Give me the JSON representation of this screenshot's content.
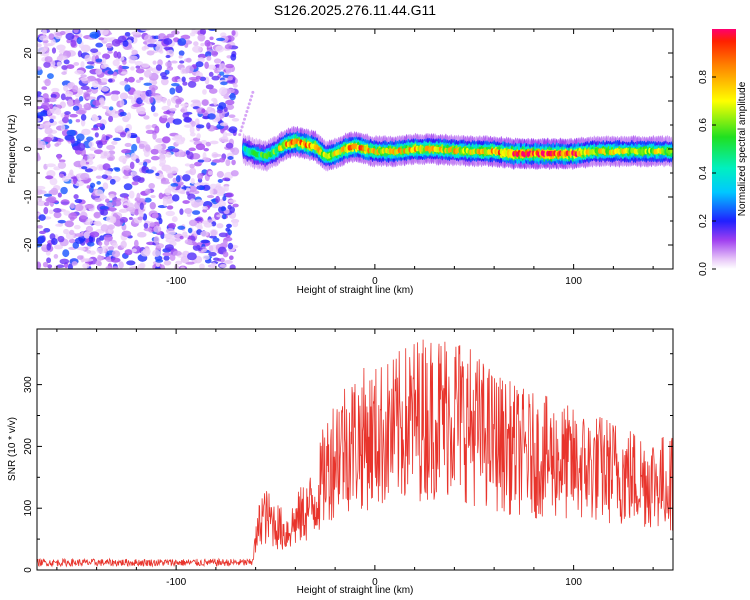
{
  "title": "S126.2025.276.11.44.G11",
  "chart_data": [
    {
      "type": "heatmap",
      "xlabel": "Height of straight line (km)",
      "ylabel": "Frequency (Hz)",
      "xlim": [
        -170,
        150
      ],
      "ylim": [
        -25,
        25
      ],
      "x_ticks": [
        -100,
        0,
        100
      ],
      "y_ticks": [
        -20,
        -10,
        0,
        10,
        20
      ],
      "noise_region_x": [
        -170,
        -70
      ],
      "ridge": [
        {
          "x": -66,
          "freq": 0.0,
          "amp": 0.45
        },
        {
          "x": -60,
          "freq": -1.0,
          "amp": 0.5
        },
        {
          "x": -55,
          "freq": -1.5,
          "amp": 0.55
        },
        {
          "x": -50,
          "freq": -0.5,
          "amp": 0.6
        },
        {
          "x": -45,
          "freq": 1.0,
          "amp": 0.8
        },
        {
          "x": -40,
          "freq": 1.5,
          "amp": 0.85
        },
        {
          "x": -35,
          "freq": 1.0,
          "amp": 0.85
        },
        {
          "x": -30,
          "freq": 0.5,
          "amp": 0.8
        },
        {
          "x": -25,
          "freq": -1.5,
          "amp": 0.7
        },
        {
          "x": -20,
          "freq": -1.0,
          "amp": 0.75
        },
        {
          "x": -15,
          "freq": 0.0,
          "amp": 0.8
        },
        {
          "x": -10,
          "freq": 0.5,
          "amp": 0.85
        },
        {
          "x": -5,
          "freq": 0.0,
          "amp": 0.85
        },
        {
          "x": 0,
          "freq": -0.5,
          "amp": 0.75
        },
        {
          "x": 10,
          "freq": -0.5,
          "amp": 0.75
        },
        {
          "x": 20,
          "freq": 0.0,
          "amp": 0.8
        },
        {
          "x": 30,
          "freq": 0.0,
          "amp": 0.75
        },
        {
          "x": 40,
          "freq": -0.3,
          "amp": 0.75
        },
        {
          "x": 50,
          "freq": -0.5,
          "amp": 0.75
        },
        {
          "x": 60,
          "freq": -0.5,
          "amp": 0.8
        },
        {
          "x": 70,
          "freq": -1.0,
          "amp": 0.95
        },
        {
          "x": 80,
          "freq": -1.0,
          "amp": 0.95
        },
        {
          "x": 90,
          "freq": -1.0,
          "amp": 0.95
        },
        {
          "x": 100,
          "freq": -1.0,
          "amp": 0.9
        },
        {
          "x": 110,
          "freq": -0.5,
          "amp": 0.7
        },
        {
          "x": 120,
          "freq": -0.5,
          "amp": 0.7
        },
        {
          "x": 130,
          "freq": -0.5,
          "amp": 0.7
        },
        {
          "x": 140,
          "freq": -0.5,
          "amp": 0.7
        },
        {
          "x": 150,
          "freq": -0.5,
          "amp": 0.65
        }
      ],
      "colorbar": {
        "label": "Normalized spectral amplitude",
        "range": [
          0,
          1
        ],
        "ticks": [
          "0.0",
          "0.2",
          "0.4",
          "0.6",
          "0.8"
        ]
      }
    },
    {
      "type": "line",
      "xlabel": "Height of straight line (km)",
      "ylabel": "SNR (10 * v/v)",
      "xlim": [
        -170,
        150
      ],
      "ylim": [
        0,
        390
      ],
      "x_ticks": [
        -100,
        0,
        100
      ],
      "y_ticks": [
        0,
        100,
        200,
        300
      ],
      "color": "#e8342c",
      "envelope": [
        {
          "x": -170,
          "y": 12
        },
        {
          "x": -100,
          "y": 12
        },
        {
          "x": -62,
          "y": 12
        },
        {
          "x": -57,
          "y": 90
        },
        {
          "x": -52,
          "y": 80
        },
        {
          "x": -45,
          "y": 60
        },
        {
          "x": -38,
          "y": 85
        },
        {
          "x": -30,
          "y": 110
        },
        {
          "x": -25,
          "y": 160
        },
        {
          "x": -18,
          "y": 200
        },
        {
          "x": -10,
          "y": 210
        },
        {
          "x": 0,
          "y": 215
        },
        {
          "x": 10,
          "y": 225
        },
        {
          "x": 20,
          "y": 245
        },
        {
          "x": 30,
          "y": 250
        },
        {
          "x": 40,
          "y": 255
        },
        {
          "x": 50,
          "y": 230
        },
        {
          "x": 60,
          "y": 210
        },
        {
          "x": 70,
          "y": 195
        },
        {
          "x": 80,
          "y": 185
        },
        {
          "x": 90,
          "y": 180
        },
        {
          "x": 100,
          "y": 170
        },
        {
          "x": 110,
          "y": 165
        },
        {
          "x": 120,
          "y": 160
        },
        {
          "x": 130,
          "y": 150
        },
        {
          "x": 140,
          "y": 145
        },
        {
          "x": 150,
          "y": 140
        }
      ]
    }
  ]
}
